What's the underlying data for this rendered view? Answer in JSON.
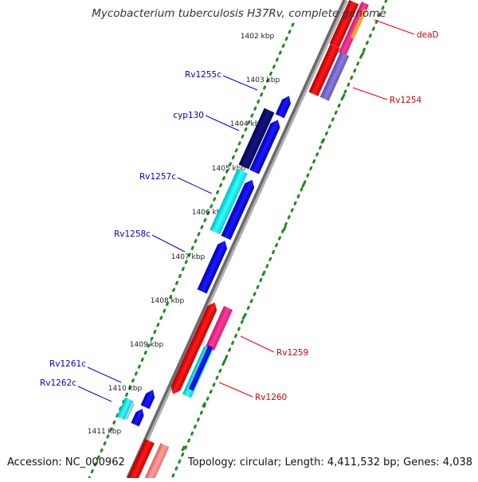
{
  "title": "Mycobacterium tuberculosis H37Rv, complete genome",
  "footer": {
    "accession": "Accession: NC_000962",
    "summary": "Topology: circular; Length: 4,411,532 bp; Genes: 4,038"
  },
  "ticks": [
    "1402 kbp",
    "1403 kbp",
    "1404 kbp",
    "1405 kbp",
    "1406 kbp",
    "1407 kbp",
    "1408 kbp",
    "1409 kbp",
    "1410 kbp",
    "1411 kbp"
  ],
  "gene_labels": [
    "deaD",
    "Rv1254",
    "Rv1255c",
    "cyp130",
    "Rv1257c",
    "Rv1258c",
    "Rv1259",
    "Rv1260",
    "Rv1261c",
    "Rv1262c"
  ],
  "colors": {
    "backbone": "#777777",
    "tick_dots": "#1f8a1f",
    "forward_gene": "#0000ee",
    "dark_gene": "#0b0b6e",
    "cyan_gene": "#00e5ee",
    "red_gene": "#ee0000",
    "pink_gene": "#ee2a8a",
    "purple_gene": "#7b68c8",
    "label_blue": "#0000cc",
    "label_red": "#cc0000"
  }
}
